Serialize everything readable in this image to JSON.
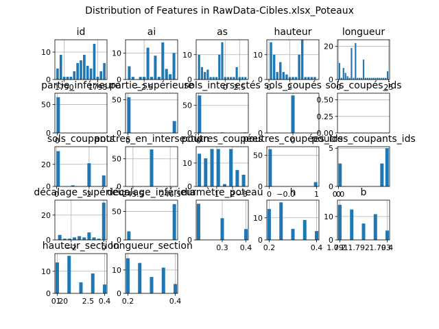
{
  "figure": {
    "title": "Distribution of Features in RawData-Cibles.xlsx_Poteaux"
  },
  "colors": {
    "bar": "#1f77b4",
    "grid": "#b0b0b0",
    "axis": "#000000"
  },
  "chart_data": [
    {
      "type": "bar",
      "title": "id",
      "grid": true,
      "x": [
        1789.0,
        1789.5,
        1790.0,
        1790.5,
        1791.0,
        1791.5,
        1792.0,
        1792.5,
        1793.0,
        1793.5,
        1794.0,
        1794.5,
        1795.0,
        1795.5,
        1796.0
      ],
      "values": [
        4,
        9,
        1,
        1,
        1,
        3,
        6,
        7,
        9,
        5,
        4,
        13,
        1,
        3,
        6
      ],
      "xlim": [
        1788.6,
        1796.4
      ],
      "ylim": [
        0,
        14.5
      ],
      "xticks": [
        {
          "v": 1790,
          "label": "1790"
        },
        {
          "v": 1795,
          "label": "1795"
        }
      ],
      "xtick_tail": {
        "v": 1790,
        "label": "−1790"
      },
      "yticks": [
        {
          "v": 0,
          "label": "0"
        },
        {
          "v": 10,
          "label": "10"
        }
      ]
    },
    {
      "type": "bar",
      "title": "ai",
      "grid": true,
      "x": [
        -4.5,
        -4.0,
        -3.0,
        -2.5,
        -2.0,
        -1.5,
        -1.0,
        -0.5,
        0,
        0.5,
        1.0,
        1.5
      ],
      "values": [
        5,
        1,
        1,
        1,
        12,
        1,
        9,
        1,
        14,
        4,
        2,
        10
      ],
      "xlim": [
        -5.0,
        2.0
      ],
      "ylim": [
        0,
        15
      ],
      "xticks": [
        {
          "v": -2.5,
          "label": "−2.5"
        }
      ],
      "yticks": [
        {
          "v": 0,
          "label": "0"
        },
        {
          "v": 10,
          "label": "10"
        }
      ]
    },
    {
      "type": "bar",
      "title": "as",
      "grid": true,
      "x": [
        -4.5,
        -4.0,
        -3.5,
        -3.0,
        -2.5,
        -2.0,
        -1.5,
        -1.0,
        -0.5,
        0,
        0.5,
        1.0,
        1.5,
        2.0,
        2.5,
        3.0,
        3.5
      ],
      "values": [
        10,
        5,
        3,
        4,
        1,
        1,
        1,
        10,
        15,
        1,
        1,
        1,
        1,
        5,
        1,
        1,
        1
      ],
      "xlim": [
        -5.0,
        4.0
      ],
      "ylim": [
        0,
        16
      ],
      "xticks": [
        {
          "v": 0,
          "label": "0"
        },
        {
          "v": 2.5,
          "label": "2.5"
        }
      ],
      "yticks": [
        {
          "v": 0,
          "label": "0"
        },
        {
          "v": 10,
          "label": "10"
        }
      ]
    },
    {
      "type": "bar",
      "title": "hauteur",
      "grid": true,
      "x": [
        0.2,
        0.5,
        0.8,
        1.1,
        1.4,
        1.7,
        2.0,
        2.3,
        2.6,
        2.9,
        3.2,
        3.5,
        3.8,
        4.1,
        4.4
      ],
      "values": [
        15,
        10,
        3,
        7,
        3,
        2,
        1,
        1,
        1,
        10,
        16,
        1,
        1,
        1,
        1
      ],
      "xlim": [
        -0.2,
        4.8
      ],
      "ylim": [
        0,
        16
      ],
      "xticks": [
        {
          "v": 0,
          "label": "0"
        },
        {
          "v": 2,
          "label": "2"
        }
      ],
      "yticks": [
        {
          "v": 0,
          "label": "0"
        },
        {
          "v": 10,
          "label": "10"
        }
      ]
    },
    {
      "type": "bar",
      "title": "longueur",
      "grid": true,
      "x": [
        0.5,
        1.5,
        2.5,
        3.5,
        4.5,
        5.5,
        6.5,
        7.5,
        8.5,
        9.5,
        10.5,
        11.5,
        12.5,
        13.5,
        14.5,
        15.5,
        16.5,
        17.5,
        18.5,
        19.5,
        20.5,
        21.5,
        22.5,
        23.5,
        24.5
      ],
      "values": [
        10,
        1,
        7,
        4,
        2,
        1,
        19,
        1,
        22,
        1,
        1,
        1,
        12,
        1,
        1,
        1,
        1,
        1,
        1,
        1,
        1,
        1,
        1,
        1,
        5
      ],
      "xlim": [
        -0.5,
        25.5
      ],
      "ylim": [
        0,
        24
      ],
      "xticks": [
        {
          "v": 0,
          "label": "0"
        },
        {
          "v": 25,
          "label": "25"
        }
      ],
      "yticks": [
        {
          "v": 0,
          "label": "0"
        },
        {
          "v": 20,
          "label": "20"
        }
      ]
    },
    {
      "type": "bar",
      "title": "partie_inférieure",
      "grid": true,
      "x": [
        0.02,
        0.5,
        0.98
      ],
      "values": [
        63,
        0,
        0
      ],
      "xlim": [
        -0.05,
        1.05
      ],
      "ylim": [
        0,
        70
      ],
      "xticks": [
        {
          "v": 0,
          "label": "0"
        }
      ],
      "yticks": [
        {
          "v": 0,
          "label": "0"
        },
        {
          "v": 50,
          "label": "50"
        }
      ]
    },
    {
      "type": "bar",
      "title": "partie_supérieure",
      "grid": true,
      "x": [
        0.02,
        0.98
      ],
      "values": [
        54,
        18
      ],
      "xlim": [
        -0.05,
        1.05
      ],
      "ylim": [
        0,
        60
      ],
      "xticks": [
        {
          "v": 0,
          "label": "0"
        }
      ],
      "yticks": [
        {
          "v": 0,
          "label": "0"
        },
        {
          "v": 50,
          "label": "50"
        }
      ]
    },
    {
      "type": "bar",
      "title": "sols_intersectés",
      "grid": true,
      "x": [
        0.02,
        0.5,
        0.98
      ],
      "values": [
        68,
        1,
        1
      ],
      "xlim": [
        -0.05,
        1.05
      ],
      "ylim": [
        0,
        72
      ],
      "xticks": [
        {
          "v": 0,
          "label": "0"
        }
      ],
      "yticks": [
        {
          "v": 0,
          "label": "0"
        },
        {
          "v": 50,
          "label": "50"
        }
      ]
    },
    {
      "type": "bar",
      "title": "sols_coupés",
      "grid": true,
      "x": [
        -0.3,
        0,
        0.3
      ],
      "values": [
        0,
        68,
        0
      ],
      "xlim": [
        -0.6,
        0.6
      ],
      "ylim": [
        0,
        72
      ],
      "xticks": [
        {
          "v": 0,
          "label": "0"
        }
      ],
      "yticks": [
        {
          "v": 0,
          "label": "0"
        }
      ]
    },
    {
      "type": "bar",
      "title": "sols_coupés_ids",
      "grid": true,
      "x": [],
      "values": [],
      "xlim": [
        0,
        1
      ],
      "ylim": [
        0,
        0.6
      ],
      "xticks": [],
      "yticks": [
        {
          "v": 0,
          "label": "0.00"
        },
        {
          "v": 0.25,
          "label": "0.25"
        },
        {
          "v": 0.5,
          "label": "0.50"
        }
      ]
    },
    {
      "type": "bar",
      "title": "sols_coupants",
      "grid": true,
      "x": [
        0.1,
        1.0,
        2.0,
        2.9
      ],
      "values": [
        32,
        1,
        21,
        10
      ],
      "xlim": [
        -0.1,
        3.1
      ],
      "ylim": [
        0,
        36
      ],
      "xticks": [
        {
          "v": 0,
          "label": "0"
        },
        {
          "v": 2,
          "label": "2"
        }
      ],
      "yticks": [
        {
          "v": 0,
          "label": "0"
        },
        {
          "v": 20,
          "label": "20"
        }
      ]
    },
    {
      "type": "bar",
      "title": "poutres_en_intersection",
      "grid": true,
      "x": [
        245.5,
        246.0,
        246.5
      ],
      "values": [
        0,
        67,
        0
      ],
      "xlim": [
        245.3,
        246.7
      ],
      "ylim": [
        0,
        72
      ],
      "xticks": [
        {
          "v": 245.5,
          "label": "245.5"
        },
        {
          "v": 246.5,
          "label": "246.5"
        }
      ],
      "yticks": [
        {
          "v": 0,
          "label": "0"
        },
        {
          "v": 50,
          "label": "50"
        }
      ]
    },
    {
      "type": "bar",
      "title": "poutres_coupées",
      "grid": true,
      "x": [
        -0.1,
        0.3,
        0.7,
        1.1,
        1.5,
        1.9,
        2.3,
        2.7
      ],
      "values": [
        14,
        12,
        16,
        16,
        1,
        16,
        7,
        5
      ],
      "xlim": [
        -0.3,
        3.0
      ],
      "ylim": [
        0,
        17
      ],
      "xticks": [
        {
          "v": 1,
          "label": "1"
        },
        {
          "v": 2,
          "label": "2"
        }
      ],
      "yticks": [
        {
          "v": 0,
          "label": "0"
        },
        {
          "v": 10,
          "label": "10"
        }
      ]
    },
    {
      "type": "bar",
      "title": "poutres_coupées_ids",
      "grid": true,
      "x": [
        0.02,
        0.98
      ],
      "values": [
        60,
        7
      ],
      "xlim": [
        -0.05,
        1.05
      ],
      "ylim": [
        0,
        64
      ],
      "xticks": [
        {
          "v": 0,
          "label": "0"
        },
        {
          "v": 1,
          "label": "1"
        }
      ],
      "yticks": [
        {
          "v": 0,
          "label": "0"
        },
        {
          "v": 50,
          "label": "50"
        }
      ]
    },
    {
      "type": "bar",
      "title": "poutres_coupants_ids",
      "grid": true,
      "x": [
        0.03,
        0.85,
        0.95
      ],
      "values": [
        3,
        3,
        5
      ],
      "xlim": [
        -0.02,
        1.0
      ],
      "ylim": [
        0,
        5.2
      ],
      "xticks": [
        {
          "v": 0,
          "label": "0"
        }
      ],
      "yticks": [
        {
          "v": 0,
          "label": "0"
        },
        {
          "v": 5,
          "label": "5"
        }
      ]
    },
    {
      "type": "bar",
      "title": "décalage_supérieur",
      "grid": true,
      "x": [
        -2.7,
        -2.4,
        -2.1,
        -1.8,
        -1.5,
        -1.2,
        -0.9,
        -0.6,
        -0.3,
        0
      ],
      "values": [
        4,
        1,
        1,
        2,
        3,
        2,
        6,
        2,
        1,
        30
      ],
      "xlim": [
        -3.0,
        0.2
      ],
      "ylim": [
        0,
        32
      ],
      "xticks": [
        {
          "v": -2,
          "label": "−2"
        },
        {
          "v": 0,
          "label": "0"
        }
      ],
      "yticks": [
        {
          "v": 0,
          "label": "0"
        },
        {
          "v": 20,
          "label": "20"
        }
      ]
    },
    {
      "type": "bar",
      "title": "décalage_inférieur",
      "grid": true,
      "x": [
        0.02,
        0.5,
        0.98
      ],
      "values": [
        15,
        0,
        63
      ],
      "xlim": [
        -0.05,
        1.05
      ],
      "ylim": [
        0,
        70
      ],
      "xticks": [],
      "yticks": [
        {
          "v": 0,
          "label": "0"
        },
        {
          "v": 50,
          "label": "50"
        }
      ]
    },
    {
      "type": "bar",
      "title": "diamètre_poteau",
      "grid": true,
      "x": [
        0.2,
        0.3,
        0.4
      ],
      "values": [
        10,
        6,
        3
      ],
      "xlim": [
        0.19,
        0.41
      ],
      "ylim": [
        0,
        11
      ],
      "xticks": [
        {
          "v": 0.3,
          "label": "0.3"
        },
        {
          "v": 0.4,
          "label": "0.4"
        }
      ],
      "yticks": [
        {
          "v": 0,
          "label": "0"
        }
      ]
    },
    {
      "type": "bar",
      "title": "h",
      "grid": true,
      "x": [
        0.2,
        0.25,
        0.3,
        0.35,
        0.4
      ],
      "values": [
        14,
        17,
        5,
        9,
        4
      ],
      "xlim": [
        0.19,
        0.41
      ],
      "ylim": [
        0,
        18
      ],
      "xticks": [
        {
          "v": 0.2,
          "label": "0.2"
        },
        {
          "v": 0.4,
          "label": "0.4"
        }
      ],
      "yticks": [
        {
          "v": 0,
          "label": "0"
        },
        {
          "v": 10,
          "label": "10"
        }
      ]
    },
    {
      "type": "bar",
      "title": "b",
      "grid": true,
      "x": [
        0.2,
        0.25,
        0.3,
        0.35,
        0.4
      ],
      "values": [
        15,
        13,
        7,
        11,
        4
      ],
      "xlim": [
        0.19,
        0.41
      ],
      "ylim": [
        0,
        17
      ],
      "xticks": [
        {
          "v": 0.2,
          "label": "0.2"
        },
        {
          "v": 0.4,
          "label": "0.4"
        }
      ],
      "yticks": [
        {
          "v": 0,
          "label": "0"
        },
        {
          "v": 10,
          "label": "10"
        }
      ]
    },
    {
      "type": "bar",
      "title": "hauteur_section",
      "grid": true,
      "x": [
        0.2,
        0.25,
        0.3,
        0.35,
        0.4
      ],
      "values": [
        14,
        17,
        5,
        9,
        4
      ],
      "xlim": [
        0.19,
        0.41
      ],
      "ylim": [
        0,
        18
      ],
      "xticks": [
        {
          "v": 0.2,
          "label": "0.2"
        },
        {
          "v": 0.4,
          "label": "0.4"
        }
      ],
      "yticks": [
        {
          "v": 0,
          "label": "0"
        },
        {
          "v": 10,
          "label": "10"
        }
      ]
    },
    {
      "type": "bar",
      "title": "longueur_section",
      "grid": true,
      "x": [
        0.2,
        0.25,
        0.3,
        0.35,
        0.4
      ],
      "values": [
        15,
        13,
        7,
        11,
        4
      ],
      "xlim": [
        0.19,
        0.41
      ],
      "ylim": [
        0,
        17
      ],
      "xticks": [
        {
          "v": 0.2,
          "label": "0.2"
        },
        {
          "v": 0.4,
          "label": "0.4"
        }
      ],
      "yticks": [
        {
          "v": 0,
          "label": "0"
        },
        {
          "v": 10,
          "label": "10"
        }
      ]
    }
  ],
  "overlay_labels": [
    {
      "text": "1.791",
      "panel": 19,
      "v": 0.19
    },
    {
      "text": "1.792",
      "panel": 19,
      "v": 0.28
    },
    {
      "text": "1.793",
      "panel": 19,
      "v": 0.37
    },
    {
      "text": "1.0",
      "panel": 20,
      "v": 0.22
    },
    {
      "text": "2.5",
      "panel": 20,
      "v": 0.33
    },
    {
      "text": "−5",
      "panel": 12,
      "v": 2.6
    },
    {
      "text": "0.0",
      "panel": 14,
      "v": 0.0
    },
    {
      "text": "−0.0",
      "panel": 13,
      "v": 0.35
    }
  ]
}
